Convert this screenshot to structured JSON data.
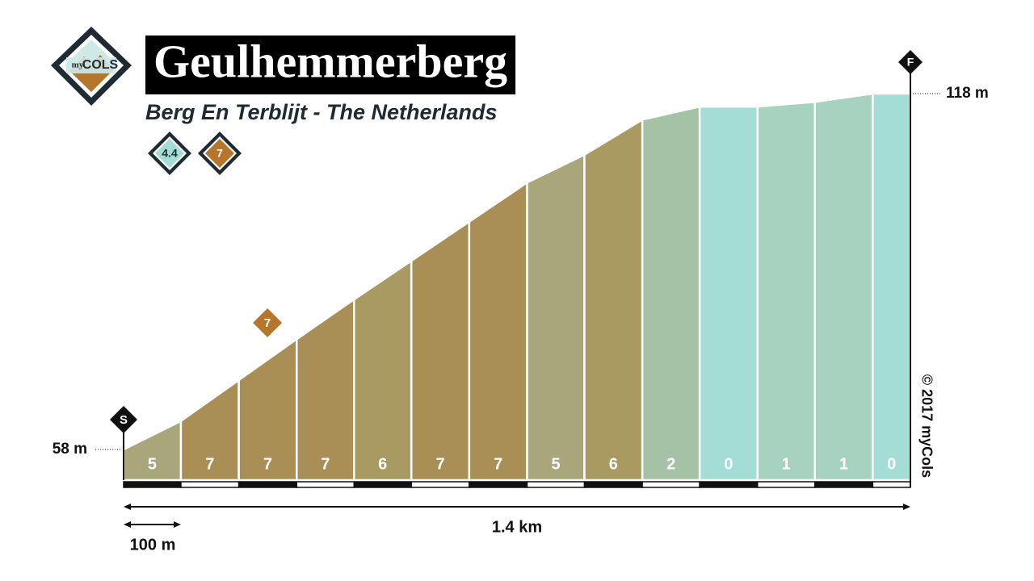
{
  "chart_data": {
    "type": "area",
    "title": "Geulhemmerberg",
    "subtitle": "Berg En Terblijt - The Netherlands",
    "logo": {
      "prefix": "my",
      "name": "COLS"
    },
    "badges": [
      {
        "value": 4.4,
        "color": "#a3ddd5"
      },
      {
        "value": 7,
        "color": "#b5762c"
      }
    ],
    "x": [
      0,
      0.102,
      0.205,
      0.308,
      0.41,
      0.512,
      0.615,
      0.718,
      0.82,
      0.923,
      1.025,
      1.128,
      1.23,
      1.333,
      1.4
    ],
    "values": [
      58,
      62.8,
      69.7,
      76.6,
      83.3,
      89.8,
      96.4,
      103.0,
      107.7,
      113.6,
      115.8,
      115.8,
      116.6,
      118,
      118
    ],
    "value_labels": [
      "58 m",
      null,
      null,
      null,
      null,
      null,
      null,
      null,
      null,
      null,
      null,
      null,
      null,
      null,
      "118 m"
    ],
    "segment_gradients": [
      5,
      7,
      7,
      7,
      6,
      7,
      7,
      5,
      6,
      2,
      0,
      1,
      1,
      0
    ],
    "segment_colors": [
      "#a8a67a",
      "#a98f56",
      "#a98f56",
      "#a98f56",
      "#a99a62",
      "#a98f56",
      "#a98f56",
      "#a8a67a",
      "#a99a62",
      "#a5c1a6",
      "#a3ddd5",
      "#a7d2c0",
      "#a7d2c0",
      "#a3ddd5"
    ],
    "xlim": [
      0,
      1.4
    ],
    "ylim": [
      58,
      118
    ],
    "start_marker": "S",
    "finish_marker": "F",
    "max_marker": {
      "x": 0.256,
      "label": 7,
      "color": "#b5762c"
    },
    "distance_label": "1.4 km",
    "scale_label": "100 m",
    "copyright": "© 2017 myCols"
  }
}
